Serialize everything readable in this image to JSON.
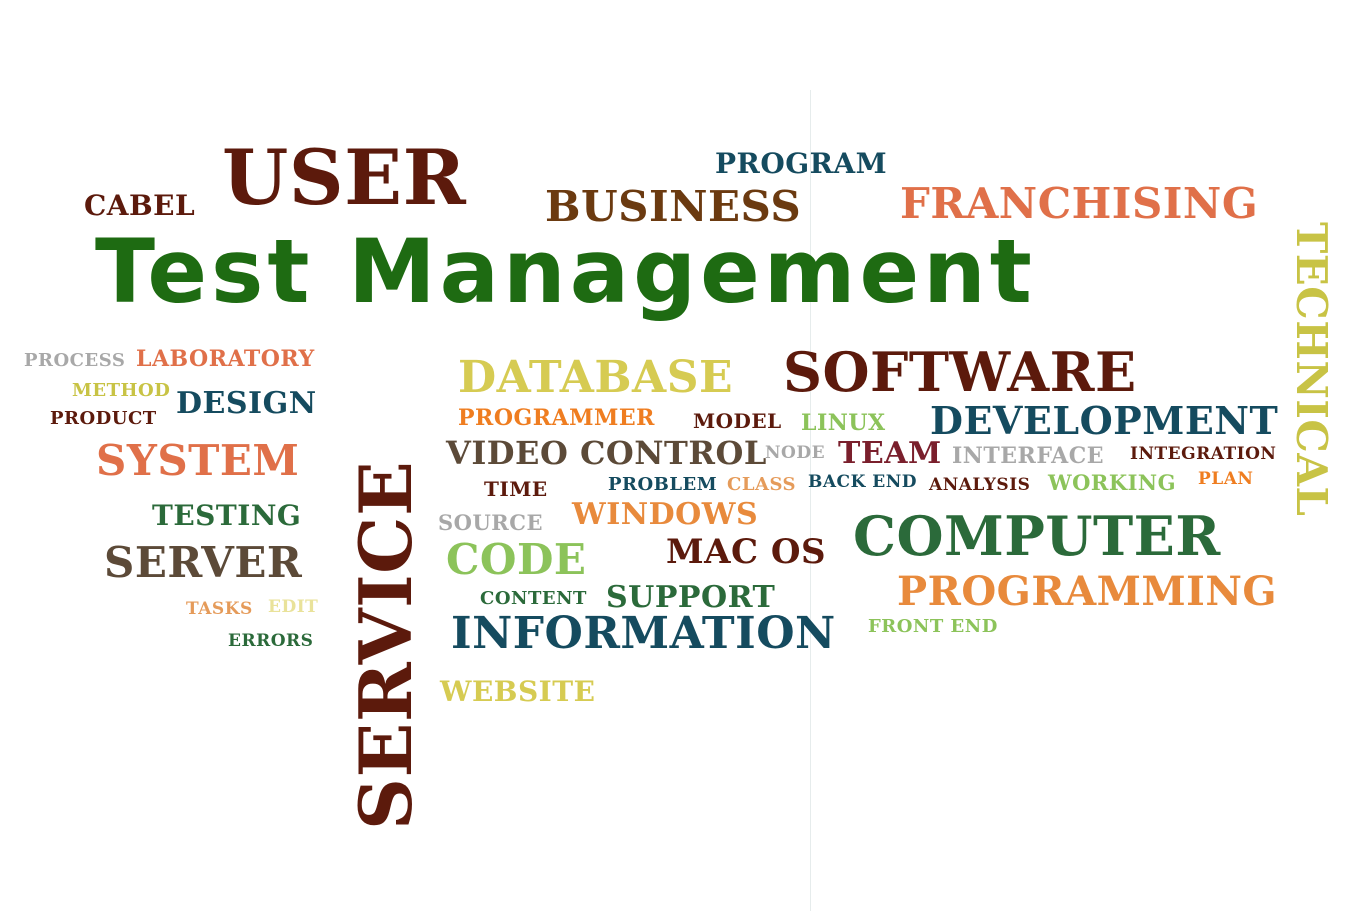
{
  "words": {
    "title": "Test Management",
    "user": "USER",
    "cabel": "CABEL",
    "business": "BUSINESS",
    "program": "PROGRAM",
    "franchising": "FRANCHISING",
    "technical": "TECHNICAL",
    "service": "SERVICE",
    "process": "PROCESS",
    "laboratory": "LABORATORY",
    "method": "METHOD",
    "product": "PRODUCT",
    "design": "DESIGN",
    "system": "SYSTEM",
    "testing": "TESTING",
    "server": "SERVER",
    "tasks": "TASKS",
    "edit": "EDIT",
    "errors": "ERRORS",
    "database": "DATABASE",
    "software": "SOFTWARE",
    "programmer": "PROGRAMMER",
    "model": "MODEL",
    "linux": "LINUX",
    "development": "DEVELOPMENT",
    "video_control": "VIDEO CONTROL",
    "node": "NODE",
    "team": "TEAM",
    "interface": "INTERFACE",
    "integration": "INTEGRATION",
    "time": "TIME",
    "problem": "PROBLEM",
    "class": "CLASS",
    "back_end": "BACK END",
    "analysis": "ANALYSIS",
    "working": "WORKING",
    "plan": "PLAN",
    "source": "SOURCE",
    "windows": "WINDOWS",
    "computer": "COMPUTER",
    "code": "CODE",
    "mac_os": "MAC OS",
    "programming": "PROGRAMMING",
    "content": "CONTENT",
    "support": "SUPPORT",
    "front_end": "FRONT END",
    "information": "INFORMATION",
    "website": "WEBSITE"
  }
}
